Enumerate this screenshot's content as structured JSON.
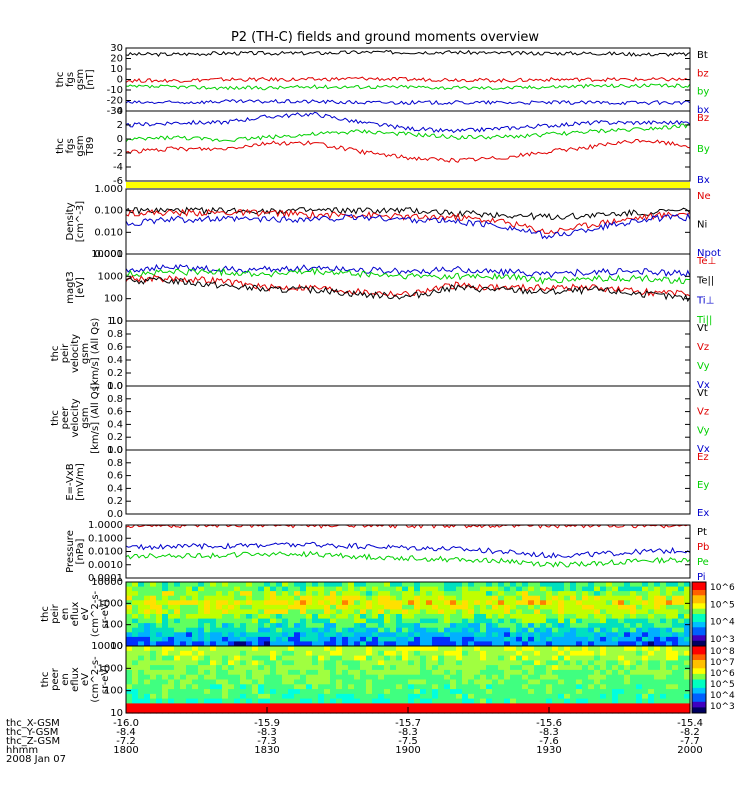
{
  "title": "P2 (TH-C) fields and ground moments overview",
  "colors": {
    "black": "#000000",
    "red": "#e00000",
    "green": "#00d000",
    "blue": "#0000cc",
    "yellow": "#ffff00"
  },
  "chart_data": [
    {
      "type": "line",
      "ylabel": [
        "thc",
        "fgs",
        "gsm",
        "[nT]"
      ],
      "ylim": [
        -30,
        30
      ],
      "yticks": [
        "30",
        "20",
        "10",
        "0",
        "-10",
        "-20",
        "-30"
      ],
      "legend": [
        {
          "name": "Bt",
          "color": "black"
        },
        {
          "name": "bz",
          "color": "red"
        },
        {
          "name": "by",
          "color": "green"
        },
        {
          "name": "bx",
          "color": "blue"
        }
      ],
      "series": [
        {
          "name": "Bt",
          "color": "black",
          "base": [
            24,
            24,
            25,
            25,
            25,
            26,
            26,
            26,
            25,
            25,
            25,
            24,
            24
          ]
        },
        {
          "name": "bz",
          "color": "red",
          "base": [
            -1,
            -1,
            0,
            0,
            0,
            1,
            0,
            0,
            -1,
            0,
            0,
            0,
            0
          ]
        },
        {
          "name": "by",
          "color": "green",
          "base": [
            -7,
            -7,
            -8,
            -8,
            -7,
            -7,
            -7,
            -8,
            -8,
            -7,
            -6,
            -6,
            -6
          ]
        },
        {
          "name": "bx",
          "color": "blue",
          "base": [
            -22,
            -22,
            -21,
            -21,
            -21,
            -22,
            -22,
            -22,
            -22,
            -22,
            -22,
            -22,
            -22
          ]
        }
      ]
    },
    {
      "type": "line",
      "ylabel": [
        "thc",
        "fgs",
        "gsm",
        "T89"
      ],
      "ylim": [
        -7,
        5
      ],
      "yticks": [
        "4",
        "2",
        "0",
        "-2",
        "-4",
        "-6"
      ],
      "legend": [
        {
          "name": "Bz",
          "color": "red"
        },
        {
          "name": "By",
          "color": "green"
        },
        {
          "name": "Bx",
          "color": "blue"
        }
      ],
      "series": [
        {
          "name": "Bz",
          "color": "red",
          "base": [
            -2,
            -1.5,
            -1.5,
            -0.5,
            -0.5,
            -2,
            -3,
            -3.5,
            -3,
            -2,
            -1,
            0,
            -1
          ]
        },
        {
          "name": "By",
          "color": "green",
          "base": [
            0,
            0.5,
            0,
            0.5,
            1,
            1.5,
            1,
            0.5,
            0.5,
            1,
            1.5,
            2,
            2.5
          ]
        },
        {
          "name": "Bx",
          "color": "blue",
          "base": [
            2.5,
            3,
            3,
            4,
            4.5,
            3,
            2,
            1.5,
            2,
            2.5,
            3,
            3,
            3
          ]
        }
      ]
    },
    {
      "type": "line",
      "ylabel": [
        "Density",
        "[cm^-3]"
      ],
      "ylim": [
        -3,
        0
      ],
      "log": true,
      "yticks": [
        "1.000",
        "0.100",
        "0.010",
        "0.001"
      ],
      "legend": [
        {
          "name": "Ne",
          "color": "red"
        },
        {
          "name": "Ni",
          "color": "black"
        },
        {
          "name": "Npot",
          "color": "blue"
        }
      ],
      "series": [
        {
          "name": "Ni",
          "color": "black",
          "base": [
            -1,
            -1,
            -1,
            -1,
            -1,
            -1,
            -1,
            -1.1,
            -1.2,
            -1.3,
            -1.2,
            -1.1,
            -1
          ]
        },
        {
          "name": "Ne",
          "color": "red",
          "base": [
            -1.1,
            -1.1,
            -1.1,
            -1.1,
            -1.2,
            -1.2,
            -1.3,
            -1.3,
            -1.5,
            -2,
            -1.6,
            -1.3,
            -1.1
          ]
        },
        {
          "name": "Npot",
          "color": "blue",
          "base": [
            -1.6,
            -1.4,
            -1.4,
            -1.4,
            -1.4,
            -1.3,
            -1.4,
            -1.5,
            -1.7,
            -2.2,
            -1.8,
            -1.4,
            -1.3
          ]
        }
      ]
    },
    {
      "type": "line",
      "ylabel": [
        "magt3",
        "[eV]"
      ],
      "ylim": [
        1,
        4
      ],
      "log": true,
      "yticks": [
        "10000",
        "1000",
        "100",
        "10"
      ],
      "legend": [
        {
          "name": "Te⊥",
          "color": "red"
        },
        {
          "name": "Te||",
          "color": "black"
        },
        {
          "name": "Ti⊥",
          "color": "blue"
        },
        {
          "name": "Ti||",
          "color": "green"
        }
      ],
      "series": [
        {
          "name": "Ti⊥",
          "color": "blue",
          "base": [
            3.3,
            3.4,
            3.3,
            3.3,
            3.4,
            3.3,
            3.2,
            3.3,
            3.2,
            3.1,
            3.2,
            3.2,
            3.1
          ]
        },
        {
          "name": "Ti||",
          "color": "green",
          "base": [
            3.1,
            3.2,
            3.2,
            3.1,
            3.2,
            3.1,
            3.0,
            3.0,
            3.0,
            2.8,
            2.9,
            2.9,
            2.8
          ]
        },
        {
          "name": "Te⊥",
          "color": "red",
          "base": [
            2.9,
            2.9,
            2.8,
            2.5,
            2.5,
            2.3,
            2.2,
            2.6,
            2.5,
            2.5,
            2.5,
            2.3,
            2.2
          ]
        },
        {
          "name": "Te||",
          "color": "black",
          "base": [
            2.8,
            2.8,
            2.6,
            2.4,
            2.4,
            2.2,
            2.1,
            2.5,
            2.4,
            2.3,
            2.4,
            2.2,
            2.0
          ]
        }
      ]
    },
    {
      "type": "line",
      "ylabel": [
        "thc",
        "peir",
        "velocity",
        "gsm",
        "[km/s] (All Qs)"
      ],
      "ylim": [
        0,
        1
      ],
      "yticks": [
        "1.0",
        "0.8",
        "0.6",
        "0.4",
        "0.2",
        "0.0"
      ],
      "legend": [
        {
          "name": "Vt",
          "color": "black"
        },
        {
          "name": "Vz",
          "color": "red"
        },
        {
          "name": "Vy",
          "color": "green"
        },
        {
          "name": "Vx",
          "color": "blue"
        }
      ],
      "series": []
    },
    {
      "type": "line",
      "ylabel": [
        "thc",
        "peer",
        "velocity",
        "gsm",
        "[km/s] (All Qs)"
      ],
      "ylim": [
        0,
        1
      ],
      "yticks": [
        "1.0",
        "0.8",
        "0.6",
        "0.4",
        "0.2",
        "0.0"
      ],
      "legend": [
        {
          "name": "Vt",
          "color": "black"
        },
        {
          "name": "Vz",
          "color": "red"
        },
        {
          "name": "Vy",
          "color": "green"
        },
        {
          "name": "Vx",
          "color": "blue"
        }
      ],
      "series": []
    },
    {
      "type": "line",
      "ylabel": [
        "E=-VxB",
        "[mV/m]"
      ],
      "ylim": [
        0,
        1
      ],
      "yticks": [
        "1.0",
        "0.8",
        "0.6",
        "0.4",
        "0.2",
        "0.0"
      ],
      "legend": [
        {
          "name": "Ez",
          "color": "red"
        },
        {
          "name": "Ey",
          "color": "green"
        },
        {
          "name": "Ex",
          "color": "blue"
        }
      ],
      "series": []
    },
    {
      "type": "line",
      "ylabel": [
        "Pressure",
        "[nPa]"
      ],
      "ylim": [
        -4,
        0
      ],
      "log": true,
      "yticks": [
        "1.0000",
        "0.1000",
        "0.0100",
        "0.0010",
        "0.0001"
      ],
      "legend": [
        {
          "name": "Pt",
          "color": "black"
        },
        {
          "name": "Pb",
          "color": "red"
        },
        {
          "name": "Pe",
          "color": "green"
        },
        {
          "name": "Pi",
          "color": "blue"
        }
      ],
      "series": [
        {
          "name": "Pb",
          "color": "red",
          "base": [
            -0.02,
            -0.02,
            -0.02,
            -0.02,
            -0.02,
            -0.02,
            -0.02,
            -0.02,
            -0.02,
            -0.02,
            -0.02,
            -0.02,
            -0.02
          ]
        },
        {
          "name": "Pi",
          "color": "blue",
          "base": [
            -1.7,
            -1.6,
            -1.6,
            -1.5,
            -1.5,
            -1.6,
            -1.7,
            -1.8,
            -2.0,
            -2.3,
            -2.2,
            -2.0,
            -1.9
          ]
        },
        {
          "name": "Pe",
          "color": "green",
          "base": [
            -2.4,
            -2.3,
            -2.3,
            -2.2,
            -2.2,
            -2.4,
            -2.5,
            -2.6,
            -2.7,
            -3.0,
            -2.9,
            -2.7,
            -2.6
          ]
        }
      ]
    },
    {
      "type": "heatmap",
      "ylabel": [
        "thc",
        "peir",
        "en",
        "eflux",
        "eV",
        "(cm^2-s-",
        "sr-eV)"
      ],
      "ylim": [
        1,
        4.2
      ],
      "log": true,
      "yticks": [
        "10000",
        "1000",
        "100",
        "10"
      ],
      "colorbar": [
        "10^6",
        "10^5",
        "10^4",
        "10^3"
      ]
    },
    {
      "type": "heatmap",
      "ylabel": [
        "thc",
        "peer",
        "en",
        "eflux",
        "eV",
        "(cm^2-s-",
        "sr-eV)"
      ],
      "ylim": [
        0.9,
        4.3
      ],
      "log": true,
      "yticks": [
        "10000",
        "1000",
        "100",
        "10"
      ],
      "colorbar": [
        "10^8",
        "10^7",
        "10^6",
        "10^5",
        "10^4",
        "10^3"
      ]
    }
  ],
  "xaxis": {
    "rows": [
      {
        "label": "thc_X-GSM",
        "values": [
          "-16.0",
          "-15.9",
          "-15.7",
          "-15.6",
          "-15.4"
        ]
      },
      {
        "label": "thc_Y-GSM",
        "values": [
          "-8.4",
          "-8.3",
          "-8.3",
          "-8.3",
          "-8.2"
        ]
      },
      {
        "label": "thc_Z-GSM",
        "values": [
          "-7.2",
          "-7.3",
          "-7.5",
          "-7.6",
          "-7.7"
        ]
      },
      {
        "label": "hhmm",
        "values": [
          "1800",
          "1830",
          "1900",
          "1930",
          "2000"
        ]
      }
    ],
    "date": "2008 Jan 07"
  }
}
